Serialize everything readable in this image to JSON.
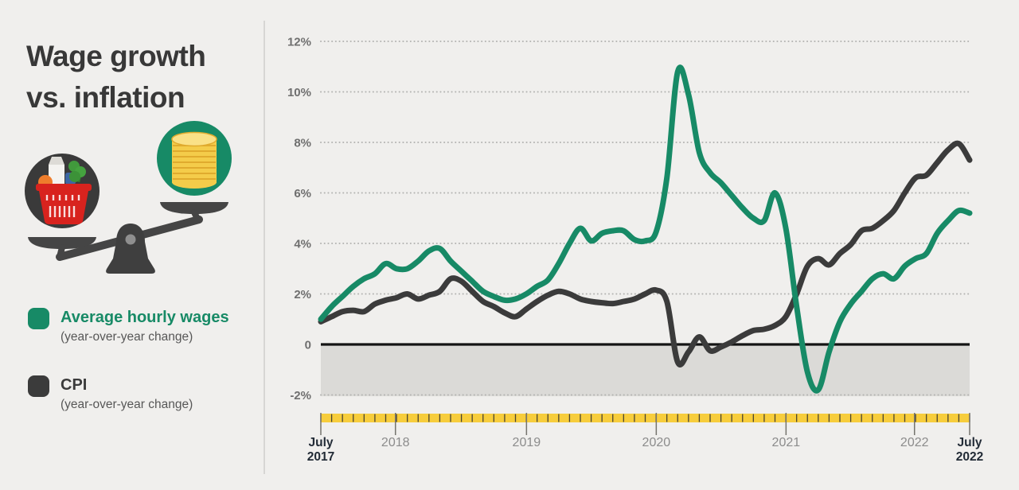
{
  "title": {
    "line1": "Wage growth",
    "line2": "vs. inflation"
  },
  "legend": [
    {
      "label": "Average hourly wages",
      "sublabel": "(year-over-year change)",
      "color": "#178a66"
    },
    {
      "label": "CPI",
      "sublabel": "(year-over-year change)",
      "color": "#3b3b3b"
    }
  ],
  "illustration": {
    "name": "balance-scale",
    "left_pan": "grocery-basket-in-dark-circle",
    "right_pan": "coin-stack-in-green-circle",
    "colors": {
      "dark_circle": "#3a3a3a",
      "green_circle": "#178a66",
      "basket_red": "#d8231e",
      "coin_yellow": "#f4cc4a",
      "coin_top": "#fae187",
      "coin_line": "#e0ab2e",
      "scale_metal": "#454545",
      "pivot_dot": "#8f8f8f",
      "orange": "#ee7d2c",
      "leaf_green": "#419a3c",
      "milk_white": "#f4f3f0",
      "jar_blue": "#3d66a4"
    }
  },
  "theme": {
    "background": "#f0efed",
    "divider": "#d7d6d4",
    "title_color": "#383838",
    "grid_color": "#b3b3b1",
    "band_color": "#dbdad7",
    "zero_line_color": "#141414",
    "y_label_color": "#6f6f6f",
    "year_label_color": "#8c8c8c",
    "edge_label_color": "#222b36",
    "year_tick_color": "#75746e",
    "timeline_yellow": "#f7cd3c",
    "timeline_tick": "#4a4534"
  },
  "chart_data": {
    "type": "line",
    "title": "Wage growth vs. inflation",
    "x_unit": "months",
    "x_range_labels": [
      "July 2017",
      "July 2022"
    ],
    "ylim": [
      -2.9,
      12.6
    ],
    "grid": "dotted-horizontal",
    "legend_position": "left-panel",
    "y_ticks": [
      {
        "label": "12%",
        "value": 12
      },
      {
        "label": "10%",
        "value": 10
      },
      {
        "label": "8%",
        "value": 8
      },
      {
        "label": "6%",
        "value": 6
      },
      {
        "label": "4%",
        "value": 4
      },
      {
        "label": "2%",
        "value": 2
      },
      {
        "label": "0",
        "value": 0
      },
      {
        "label": "-2%",
        "value": -2
      }
    ],
    "x_ticks": [
      {
        "lines": [
          "July",
          "2017"
        ],
        "frac": 0.0,
        "bold": true
      },
      {
        "lines": [
          "2018"
        ],
        "frac": 0.115,
        "bold": false
      },
      {
        "lines": [
          "2019"
        ],
        "frac": 0.317,
        "bold": false
      },
      {
        "lines": [
          "2020"
        ],
        "frac": 0.517,
        "bold": false
      },
      {
        "lines": [
          "2021"
        ],
        "frac": 0.717,
        "bold": false
      },
      {
        "lines": [
          "2022"
        ],
        "frac": 0.915,
        "bold": false
      },
      {
        "lines": [
          "July",
          "2022"
        ],
        "frac": 1.0,
        "bold": true
      }
    ],
    "negative_band": {
      "top": 0,
      "bottom": -2
    },
    "timeline_bar": {
      "months": 60
    },
    "series": [
      {
        "key": "wages",
        "name": "Average hourly wages (year-over-year change)",
        "color": "#178a66",
        "values": [
          1.0,
          1.5,
          1.9,
          2.3,
          2.6,
          2.8,
          3.2,
          3.0,
          3.0,
          3.3,
          3.7,
          3.8,
          3.3,
          2.9,
          2.5,
          2.1,
          1.9,
          1.75,
          1.8,
          2.0,
          2.3,
          2.55,
          3.2,
          4.0,
          4.6,
          4.1,
          4.4,
          4.5,
          4.5,
          4.15,
          4.1,
          4.45,
          6.6,
          10.8,
          9.9,
          7.6,
          6.8,
          6.4,
          5.9,
          5.4,
          5.0,
          4.9,
          6.0,
          4.6,
          1.5,
          -1.1,
          -1.8,
          -0.3,
          0.9,
          1.6,
          2.1,
          2.6,
          2.8,
          2.6,
          3.1,
          3.4,
          3.6,
          4.4,
          4.9,
          5.3,
          5.2
        ]
      },
      {
        "key": "cpi",
        "name": "CPI (year-over-year change)",
        "color": "#3b3b3b",
        "values": [
          0.9,
          1.1,
          1.3,
          1.35,
          1.3,
          1.6,
          1.75,
          1.85,
          2.0,
          1.8,
          1.95,
          2.1,
          2.6,
          2.5,
          2.1,
          1.7,
          1.5,
          1.25,
          1.1,
          1.4,
          1.7,
          1.95,
          2.1,
          2.0,
          1.8,
          1.7,
          1.65,
          1.62,
          1.7,
          1.8,
          2.0,
          2.15,
          1.7,
          -0.7,
          -0.3,
          0.3,
          -0.25,
          -0.1,
          0.1,
          0.35,
          0.55,
          0.6,
          0.75,
          1.1,
          2.0,
          3.1,
          3.4,
          3.15,
          3.6,
          3.95,
          4.5,
          4.6,
          4.9,
          5.3,
          6.0,
          6.6,
          6.7,
          7.2,
          7.7,
          7.95,
          7.3
        ]
      }
    ]
  }
}
